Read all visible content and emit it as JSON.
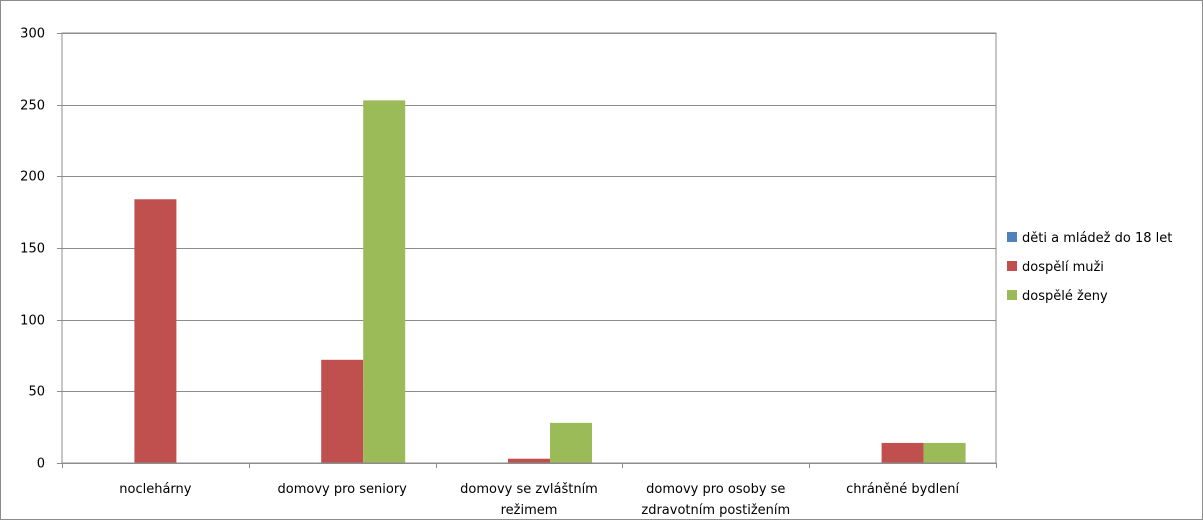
{
  "chart_data": {
    "type": "bar",
    "title": "",
    "xlabel": "",
    "ylabel": "",
    "categories": [
      [
        "noclehárny"
      ],
      [
        "domovy pro seniory"
      ],
      [
        "domovy se zvláštním",
        "režimem"
      ],
      [
        "domovy pro osoby se",
        "zdravotním postižením"
      ],
      [
        "chráněné bydlení"
      ]
    ],
    "series": [
      {
        "name": "děti a mládež do 18 let",
        "color": "#4f81bd",
        "values": [
          0,
          0,
          0,
          0,
          0
        ]
      },
      {
        "name": "dospělí muži",
        "color": "#c0504d",
        "values": [
          184,
          72,
          3,
          0,
          14
        ]
      },
      {
        "name": "dospělé ženy",
        "color": "#9bbb59",
        "values": [
          0,
          253,
          28,
          0,
          14
        ]
      }
    ],
    "ylim": [
      0,
      300
    ],
    "yticks": [
      0,
      50,
      100,
      150,
      200,
      250,
      300
    ],
    "grid": true,
    "legend_position": "right"
  }
}
